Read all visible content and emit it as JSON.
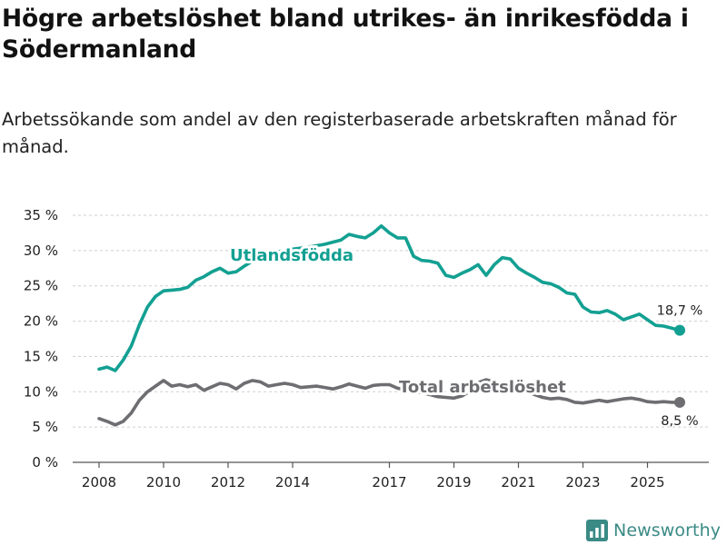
{
  "title": "Högre arbetslöshet bland utrikes- än inrikesfödda i Södermanland",
  "subtitle": "Arbetssökande som andel av den registerbaserade arbetskraften månad för månad.",
  "brand": "Newsworthy",
  "colors": {
    "foreign": "#13a092",
    "total": "#6e6e72",
    "grid": "#cfcfcf"
  },
  "chart_data": {
    "type": "line",
    "title": "Högre arbetslöshet bland utrikes- än inrikesfödda i Södermanland",
    "xlabel": "",
    "ylabel": "",
    "ylim": [
      0,
      35
    ],
    "xlim": [
      2007.75,
      2026.5
    ],
    "y_ticks": [
      0,
      5,
      10,
      15,
      20,
      25,
      30,
      35
    ],
    "y_tick_labels": [
      "0 %",
      "5 %",
      "10 %",
      "15 %",
      "20 %",
      "25 %",
      "30 %",
      "35 %"
    ],
    "x_ticks": [
      2008,
      2010,
      2012,
      2014,
      2017,
      2019,
      2021,
      2023,
      2025
    ],
    "x_tick_labels": [
      "2008",
      "2010",
      "2012",
      "2014",
      "2017",
      "2019",
      "2021",
      "2023",
      "2025"
    ],
    "series": [
      {
        "name": "Utlandsfödda",
        "label": "Utlandsfödda",
        "end_label": "18,7 %",
        "x": [
          2008.0,
          2008.25,
          2008.5,
          2008.75,
          2009.0,
          2009.25,
          2009.5,
          2009.75,
          2010.0,
          2010.25,
          2010.5,
          2010.75,
          2011.0,
          2011.25,
          2011.5,
          2011.75,
          2012.0,
          2012.25,
          2012.5,
          2012.75,
          2013.0,
          2013.5,
          2014.0,
          2014.5,
          2015.0,
          2015.5,
          2015.75,
          2016.0,
          2016.25,
          2016.5,
          2016.75,
          2017.0,
          2017.25,
          2017.5,
          2017.75,
          2018.0,
          2018.25,
          2018.5,
          2018.75,
          2019.0,
          2019.25,
          2019.5,
          2019.75,
          2020.0,
          2020.25,
          2020.5,
          2020.75,
          2021.0,
          2021.25,
          2021.5,
          2021.75,
          2022.0,
          2022.25,
          2022.5,
          2022.75,
          2023.0,
          2023.25,
          2023.5,
          2023.75,
          2024.0,
          2024.25,
          2024.5,
          2024.75,
          2025.0,
          2025.25,
          2025.5,
          2025.75,
          2026.0
        ],
        "values": [
          13.2,
          13.5,
          13.0,
          14.5,
          16.5,
          19.5,
          22.0,
          23.5,
          24.3,
          24.4,
          24.5,
          24.8,
          25.8,
          26.3,
          27.0,
          27.5,
          26.8,
          27.0,
          27.8,
          28.5,
          29.0,
          29.8,
          30.2,
          30.5,
          30.9,
          31.5,
          32.3,
          32.0,
          31.8,
          32.5,
          33.5,
          32.5,
          31.8,
          31.8,
          29.2,
          28.6,
          28.5,
          28.2,
          26.5,
          26.2,
          26.8,
          27.3,
          28.0,
          26.5,
          28.0,
          29.0,
          28.8,
          27.5,
          26.8,
          26.2,
          25.5,
          25.3,
          24.8,
          24.0,
          23.8,
          22.0,
          21.3,
          21.2,
          21.5,
          21.0,
          20.2,
          20.6,
          21.0,
          20.2,
          19.4,
          19.3,
          19.0,
          18.7
        ]
      },
      {
        "name": "Total arbetslöshet",
        "label": "Total arbetslöshet",
        "end_label": "8,5 %",
        "x": [
          2008.0,
          2008.25,
          2008.5,
          2008.75,
          2009.0,
          2009.25,
          2009.5,
          2009.75,
          2010.0,
          2010.25,
          2010.5,
          2010.75,
          2011.0,
          2011.25,
          2011.5,
          2011.75,
          2012.0,
          2012.25,
          2012.5,
          2012.75,
          2013.0,
          2013.25,
          2013.5,
          2013.75,
          2014.0,
          2014.25,
          2014.5,
          2014.75,
          2015.0,
          2015.25,
          2015.5,
          2015.75,
          2016.0,
          2016.25,
          2016.5,
          2016.75,
          2017.0,
          2017.25,
          2017.5,
          2017.75,
          2018.0,
          2018.25,
          2018.5,
          2018.75,
          2019.0,
          2019.25,
          2019.5,
          2019.75,
          2020.0,
          2020.25,
          2020.5,
          2020.75,
          2021.0,
          2021.25,
          2021.5,
          2021.75,
          2022.0,
          2022.25,
          2022.5,
          2022.75,
          2023.0,
          2023.25,
          2023.5,
          2023.75,
          2024.0,
          2024.25,
          2024.5,
          2024.75,
          2025.0,
          2025.25,
          2025.5,
          2025.75,
          2026.0
        ],
        "values": [
          6.2,
          5.8,
          5.3,
          5.8,
          7.0,
          8.8,
          10.0,
          10.8,
          11.6,
          10.8,
          11.0,
          10.7,
          11.0,
          10.2,
          10.7,
          11.2,
          11.0,
          10.4,
          11.2,
          11.6,
          11.4,
          10.8,
          11.0,
          11.2,
          11.0,
          10.6,
          10.7,
          10.8,
          10.6,
          10.4,
          10.7,
          11.1,
          10.8,
          10.5,
          10.9,
          11.0,
          11.0,
          10.5,
          10.3,
          10.0,
          9.9,
          9.6,
          9.3,
          9.2,
          9.1,
          9.4,
          10.1,
          11.3,
          11.7,
          11.4,
          11.0,
          10.5,
          10.3,
          10.0,
          9.6,
          9.2,
          9.0,
          9.1,
          8.9,
          8.5,
          8.4,
          8.6,
          8.8,
          8.6,
          8.8,
          9.0,
          9.1,
          8.9,
          8.6,
          8.5,
          8.6,
          8.5,
          8.5
        ]
      }
    ]
  }
}
